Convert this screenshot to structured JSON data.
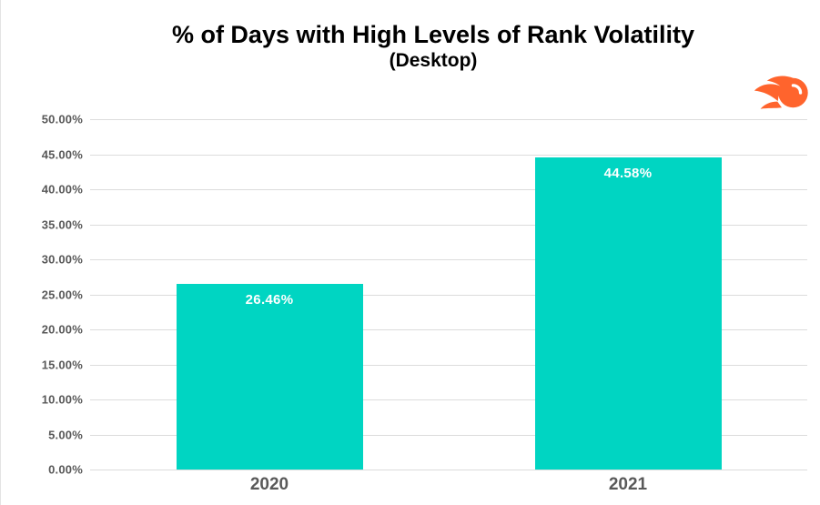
{
  "header": {
    "title": "% of Days with High Levels of Rank Volatility",
    "subtitle": "(Desktop)"
  },
  "logo": {
    "name": "semrush-logo",
    "color": "#FF642D",
    "highlight_color": "#ffffff"
  },
  "chart_data": {
    "type": "bar",
    "title": "% of Days with High Levels of Rank Volatility",
    "subtitle": "(Desktop)",
    "categories": [
      "2020",
      "2021"
    ],
    "values": [
      26.46,
      44.58
    ],
    "value_labels": [
      "26.46%",
      "44.58%"
    ],
    "xlabel": "",
    "ylabel": "",
    "ylim": [
      0,
      50
    ],
    "ytick_step": 5,
    "ytick_labels": [
      "0.00%",
      "5.00%",
      "10.00%",
      "15.00%",
      "20.00%",
      "25.00%",
      "30.00%",
      "35.00%",
      "40.00%",
      "45.00%",
      "50.00%"
    ],
    "grid": true,
    "legend": "none",
    "bar_color": "#00D5C2",
    "value_label_color": "#ffffff",
    "axis_text_color": "#595959",
    "gridline_color": "#dcdcdc"
  }
}
